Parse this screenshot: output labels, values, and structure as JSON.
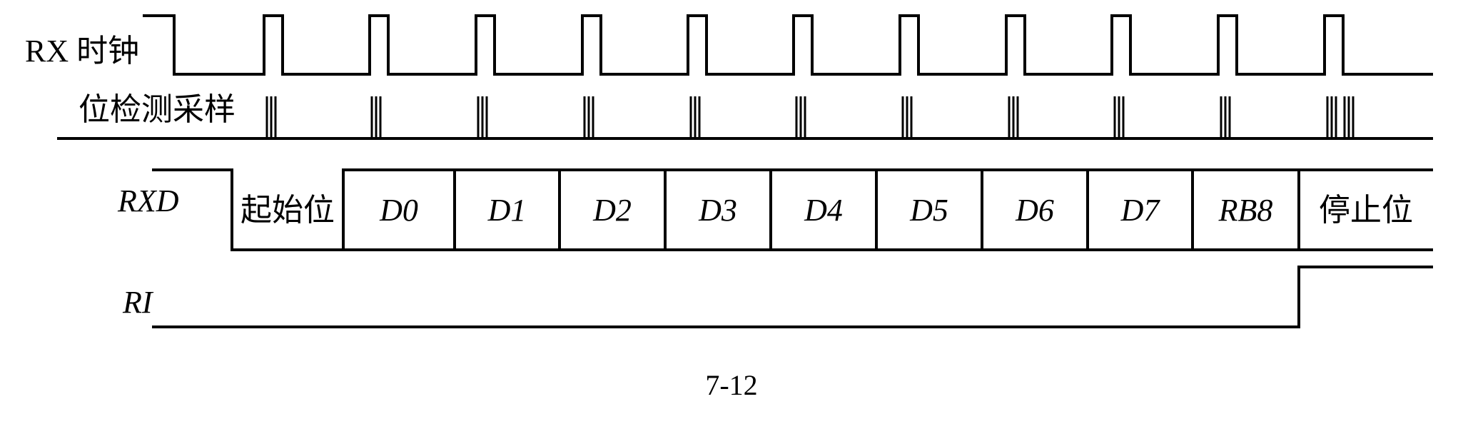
{
  "signals": {
    "rx_clock": "RX 时钟",
    "bit_sample": "位检测采样",
    "rxd": "RXD",
    "ri": "RI"
  },
  "rxd_cells": [
    {
      "text": "起始位",
      "italic": false
    },
    {
      "text": "D0",
      "italic": true
    },
    {
      "text": "D1",
      "italic": true
    },
    {
      "text": "D2",
      "italic": true
    },
    {
      "text": "D3",
      "italic": true
    },
    {
      "text": "D4",
      "italic": true
    },
    {
      "text": "D5",
      "italic": true
    },
    {
      "text": "D6",
      "italic": true
    },
    {
      "text": "D7",
      "italic": true
    },
    {
      "text": "RB8",
      "italic": true
    },
    {
      "text": "停止位",
      "italic": false
    }
  ],
  "clock_pulse_count": 12,
  "sample_group_count": 12,
  "samples_per_bit": 3,
  "caption": "7-12"
}
